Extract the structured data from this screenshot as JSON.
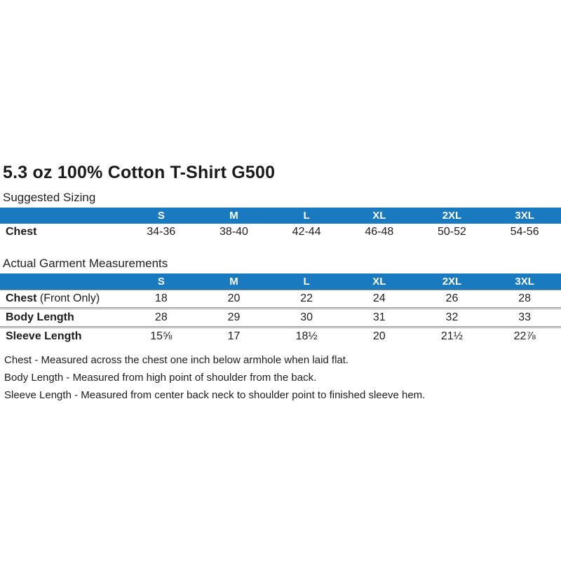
{
  "page": {
    "title": "5.3 oz 100% Cotton T-Shirt G500"
  },
  "colors": {
    "header_bg": "#1a7abf",
    "header_text": "#ffffff",
    "separator_line": "#8f8f8f",
    "body_text": "#1d1d1d"
  },
  "sizes": [
    "S",
    "M",
    "L",
    "XL",
    "2XL",
    "3XL"
  ],
  "suggested": {
    "label": "Suggested Sizing",
    "rows": [
      {
        "label": "Chest",
        "suffix": "",
        "values": [
          "34-36",
          "38-40",
          "42-44",
          "46-48",
          "50-52",
          "54-56"
        ]
      }
    ]
  },
  "actual": {
    "label": "Actual Garment Measurements",
    "rows": [
      {
        "label": "Chest",
        "suffix": " (Front Only)",
        "values": [
          "18",
          "20",
          "22",
          "24",
          "26",
          "28"
        ]
      },
      {
        "label": "Body Length",
        "suffix": "",
        "values": [
          "28",
          "29",
          "30",
          "31",
          "32",
          "33"
        ]
      },
      {
        "label": "Sleeve Length",
        "suffix": "",
        "values": [
          "15⅝",
          "17",
          "18½",
          "20",
          "21½",
          "22⅞"
        ]
      }
    ]
  },
  "notes": [
    "Chest - Measured across the chest one inch below armhole when laid flat.",
    "Body Length - Measured from high point of shoulder from the back.",
    "Sleeve Length - Measured from center back neck to shoulder point to finished sleeve hem."
  ]
}
